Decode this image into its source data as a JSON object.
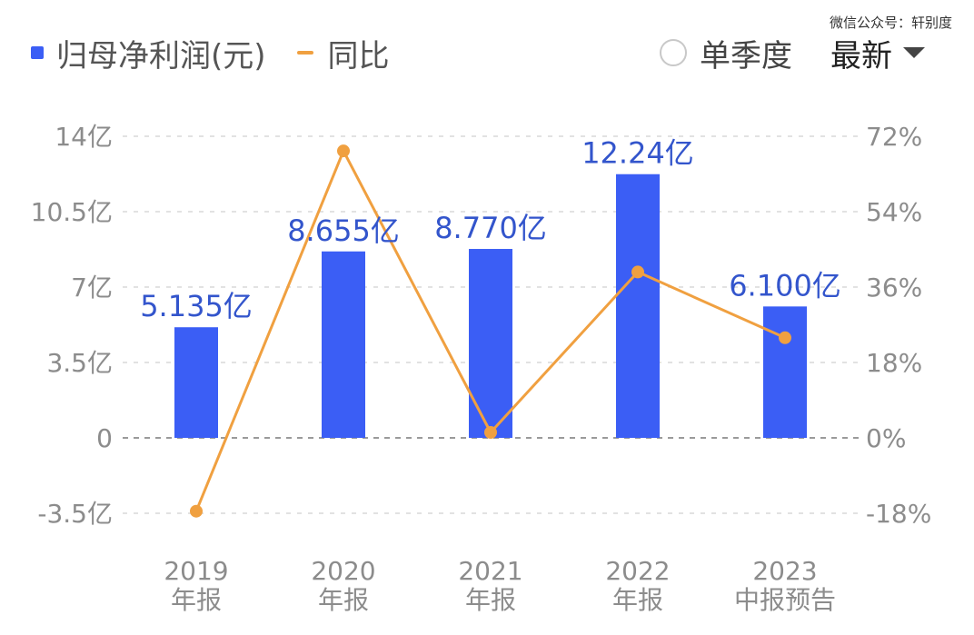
{
  "legend": {
    "bar_label": "归母净利润(元)",
    "line_label": "同比"
  },
  "controls": {
    "quarter_label": "单季度",
    "sort_label": "最新"
  },
  "watermark": "微信公众号：轩别度",
  "colors": {
    "bar": "#3b5ef5",
    "line": "#f0a040",
    "label": "#3355cc",
    "grid": "#d8d8d8",
    "axis": "#8c8c8c"
  },
  "chart_data": {
    "type": "bar",
    "categories": [
      [
        "2019",
        "年报"
      ],
      [
        "2020",
        "年报"
      ],
      [
        "2021",
        "年报"
      ],
      [
        "2022",
        "年报"
      ],
      [
        "2023",
        "中报预告"
      ]
    ],
    "series": [
      {
        "name": "归母净利润(元)",
        "type": "bar",
        "values": [
          5.135,
          8.655,
          8.77,
          12.24,
          6.1
        ],
        "labels": [
          "5.135亿",
          "8.655亿",
          "8.770亿",
          "12.24亿",
          "6.100亿"
        ]
      },
      {
        "name": "同比",
        "type": "line",
        "axis": "right",
        "values": [
          -17.5,
          68.5,
          1.3,
          39.6,
          23.9
        ]
      }
    ],
    "left_axis": {
      "ylim": [
        -3.5,
        14
      ],
      "ticks": [
        14,
        10.5,
        7,
        3.5,
        0,
        -3.5
      ],
      "tick_labels": [
        "14亿",
        "10.5亿",
        "7亿",
        "3.5亿",
        "0",
        "-3.5亿"
      ]
    },
    "right_axis": {
      "ylim": [
        -18,
        72
      ],
      "ticks": [
        72,
        54,
        36,
        18,
        0,
        -18
      ],
      "tick_labels": [
        "72%",
        "54%",
        "36%",
        "18%",
        "0%",
        "-18%"
      ]
    },
    "grid": true,
    "legend": "top-left"
  }
}
